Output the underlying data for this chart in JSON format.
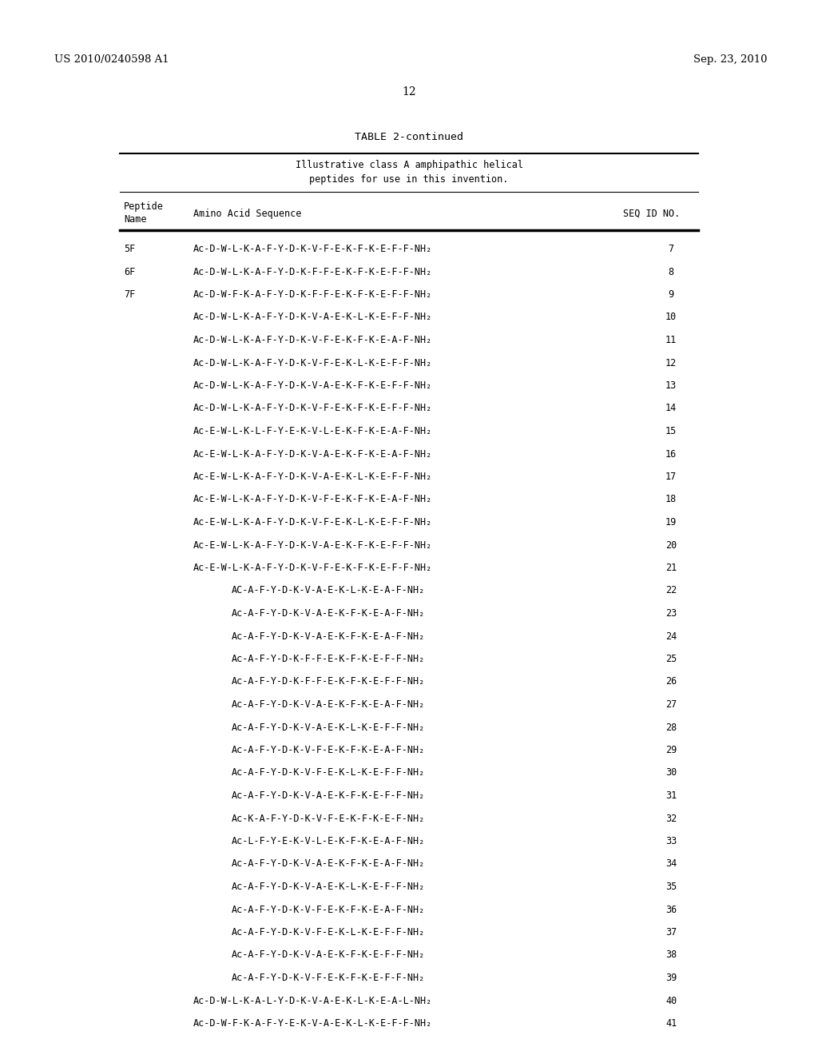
{
  "patent_number": "US 2010/0240598 A1",
  "patent_date": "Sep. 23, 2010",
  "page_number": "12",
  "table_title": "TABLE 2-continued",
  "table_subtitle_line1": "Illustrative class A amphipathic helical",
  "table_subtitle_line2": "peptides for use in this invention.",
  "col1_header_line1": "Peptide",
  "col1_header_line2": "Name",
  "col2_header": "Amino Acid Sequence",
  "col3_header": "SEQ ID NO.",
  "rows": [
    {
      "name": "5F",
      "sequence": "Ac-D-W-L-K-A-F-Y-D-K-V-F-E-K-F-K-E-F-F-NH₂",
      "seq_id": "7",
      "indent": false
    },
    {
      "name": "6F",
      "sequence": "Ac-D-W-L-K-A-F-Y-D-K-F-F-E-K-F-K-E-F-F-NH₂",
      "seq_id": "8",
      "indent": false
    },
    {
      "name": "7F",
      "sequence": "Ac-D-W-F-K-A-F-Y-D-K-F-F-E-K-F-K-E-F-F-NH₂",
      "seq_id": "9",
      "indent": false
    },
    {
      "name": "",
      "sequence": "Ac-D-W-L-K-A-F-Y-D-K-V-A-E-K-L-K-E-F-F-NH₂",
      "seq_id": "10",
      "indent": false
    },
    {
      "name": "",
      "sequence": "Ac-D-W-L-K-A-F-Y-D-K-V-F-E-K-F-K-E-A-F-NH₂",
      "seq_id": "11",
      "indent": false
    },
    {
      "name": "",
      "sequence": "Ac-D-W-L-K-A-F-Y-D-K-V-F-E-K-L-K-E-F-F-NH₂",
      "seq_id": "12",
      "indent": false
    },
    {
      "name": "",
      "sequence": "Ac-D-W-L-K-A-F-Y-D-K-V-A-E-K-F-K-E-F-F-NH₂",
      "seq_id": "13",
      "indent": false
    },
    {
      "name": "",
      "sequence": "Ac-D-W-L-K-A-F-Y-D-K-V-F-E-K-F-K-E-F-F-NH₂",
      "seq_id": "14",
      "indent": false
    },
    {
      "name": "",
      "sequence": "Ac-E-W-L-K-L-F-Y-E-K-V-L-E-K-F-K-E-A-F-NH₂",
      "seq_id": "15",
      "indent": false
    },
    {
      "name": "",
      "sequence": "Ac-E-W-L-K-A-F-Y-D-K-V-A-E-K-F-K-E-A-F-NH₂",
      "seq_id": "16",
      "indent": false
    },
    {
      "name": "",
      "sequence": "Ac-E-W-L-K-A-F-Y-D-K-V-A-E-K-L-K-E-F-F-NH₂",
      "seq_id": "17",
      "indent": false
    },
    {
      "name": "",
      "sequence": "Ac-E-W-L-K-A-F-Y-D-K-V-F-E-K-F-K-E-A-F-NH₂",
      "seq_id": "18",
      "indent": false
    },
    {
      "name": "",
      "sequence": "Ac-E-W-L-K-A-F-Y-D-K-V-F-E-K-L-K-E-F-F-NH₂",
      "seq_id": "19",
      "indent": false
    },
    {
      "name": "",
      "sequence": "Ac-E-W-L-K-A-F-Y-D-K-V-A-E-K-F-K-E-F-F-NH₂",
      "seq_id": "20",
      "indent": false
    },
    {
      "name": "",
      "sequence": "Ac-E-W-L-K-A-F-Y-D-K-V-F-E-K-F-K-E-F-F-NH₂",
      "seq_id": "21",
      "indent": false
    },
    {
      "name": "",
      "sequence": "AC-A-F-Y-D-K-V-A-E-K-L-K-E-A-F-NH₂",
      "seq_id": "22",
      "indent": true
    },
    {
      "name": "",
      "sequence": "Ac-A-F-Y-D-K-V-A-E-K-F-K-E-A-F-NH₂",
      "seq_id": "23",
      "indent": true
    },
    {
      "name": "",
      "sequence": "Ac-A-F-Y-D-K-V-A-E-K-F-K-E-A-F-NH₂",
      "seq_id": "24",
      "indent": true
    },
    {
      "name": "",
      "sequence": "Ac-A-F-Y-D-K-F-F-E-K-F-K-E-F-F-NH₂",
      "seq_id": "25",
      "indent": true
    },
    {
      "name": "",
      "sequence": "Ac-A-F-Y-D-K-F-F-E-K-F-K-E-F-F-NH₂",
      "seq_id": "26",
      "indent": true
    },
    {
      "name": "",
      "sequence": "Ac-A-F-Y-D-K-V-A-E-K-F-K-E-A-F-NH₂",
      "seq_id": "27",
      "indent": true
    },
    {
      "name": "",
      "sequence": "Ac-A-F-Y-D-K-V-A-E-K-L-K-E-F-F-NH₂",
      "seq_id": "28",
      "indent": true
    },
    {
      "name": "",
      "sequence": "Ac-A-F-Y-D-K-V-F-E-K-F-K-E-A-F-NH₂",
      "seq_id": "29",
      "indent": true
    },
    {
      "name": "",
      "sequence": "Ac-A-F-Y-D-K-V-F-E-K-L-K-E-F-F-NH₂",
      "seq_id": "30",
      "indent": true
    },
    {
      "name": "",
      "sequence": "Ac-A-F-Y-D-K-V-A-E-K-F-K-E-F-F-NH₂",
      "seq_id": "31",
      "indent": true
    },
    {
      "name": "",
      "sequence": "Ac-K-A-F-Y-D-K-V-F-E-K-F-K-E-F-NH₂",
      "seq_id": "32",
      "indent": true
    },
    {
      "name": "",
      "sequence": "Ac-L-F-Y-E-K-V-L-E-K-F-K-E-A-F-NH₂",
      "seq_id": "33",
      "indent": true
    },
    {
      "name": "",
      "sequence": "Ac-A-F-Y-D-K-V-A-E-K-F-K-E-A-F-NH₂",
      "seq_id": "34",
      "indent": true
    },
    {
      "name": "",
      "sequence": "Ac-A-F-Y-D-K-V-A-E-K-L-K-E-F-F-NH₂",
      "seq_id": "35",
      "indent": true
    },
    {
      "name": "",
      "sequence": "Ac-A-F-Y-D-K-V-F-E-K-F-K-E-A-F-NH₂",
      "seq_id": "36",
      "indent": true
    },
    {
      "name": "",
      "sequence": "Ac-A-F-Y-D-K-V-F-E-K-L-K-E-F-F-NH₂",
      "seq_id": "37",
      "indent": true
    },
    {
      "name": "",
      "sequence": "Ac-A-F-Y-D-K-V-A-E-K-F-K-E-F-F-NH₂",
      "seq_id": "38",
      "indent": true
    },
    {
      "name": "",
      "sequence": "Ac-A-F-Y-D-K-V-F-E-K-F-K-E-F-F-NH₂",
      "seq_id": "39",
      "indent": true
    },
    {
      "name": "",
      "sequence": "Ac-D-W-L-K-A-L-Y-D-K-V-A-E-K-L-K-E-A-L-NH₂",
      "seq_id": "40",
      "indent": false
    },
    {
      "name": "",
      "sequence": "Ac-D-W-F-K-A-F-Y-E-K-V-A-E-K-L-K-E-F-F-NH₂",
      "seq_id": "41",
      "indent": false
    }
  ],
  "bg_color": "#ffffff",
  "text_color": "#000000"
}
